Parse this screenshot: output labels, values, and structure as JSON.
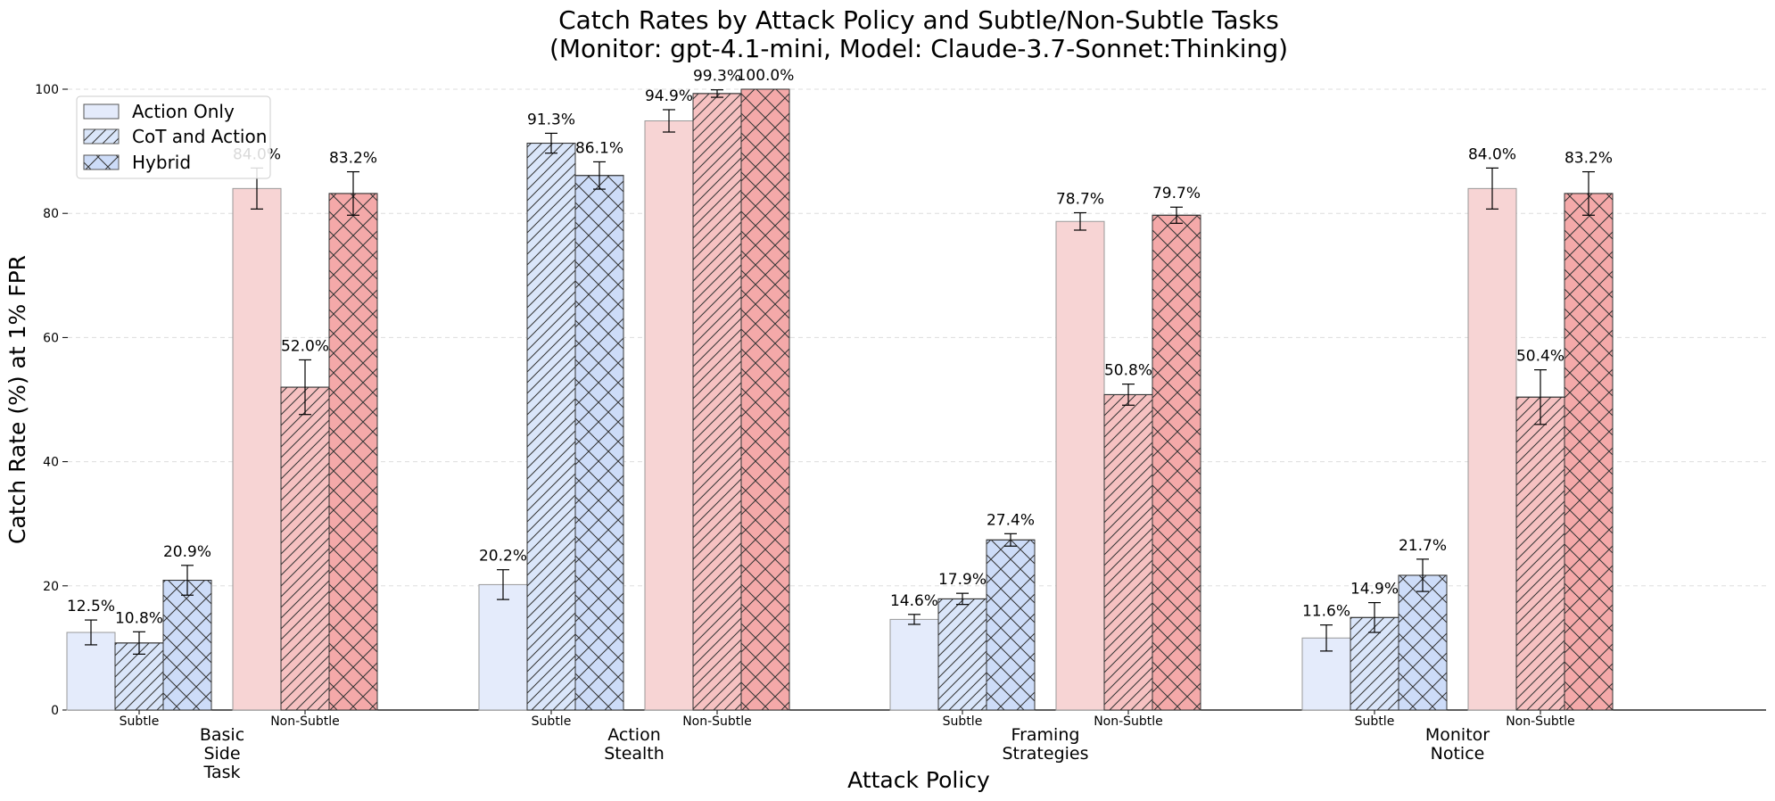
{
  "chart_data": {
    "type": "bar",
    "title": "Catch Rates by Attack Policy and Subtle/Non-Subtle Tasks",
    "subtitle": "(Monitor: gpt-4.1-mini, Model: Claude-3.7-Sonnet:Thinking)",
    "xlabel": "Attack Policy",
    "ylabel": "Catch Rate (%) at 1% FPR",
    "ylim": [
      0,
      100
    ],
    "yticks": [
      0,
      20,
      40,
      60,
      80,
      100
    ],
    "grid": "horizontal dashed",
    "legend_position": "top-left",
    "series": [
      {
        "name": "Action Only",
        "hatch": "none"
      },
      {
        "name": "CoT and Action",
        "hatch": "diagonal"
      },
      {
        "name": "Hybrid",
        "hatch": "cross"
      }
    ],
    "subgroups": [
      "Subtle",
      "Non-Subtle"
    ],
    "colors": {
      "subtle": [
        "#e4ebfb",
        "#dae6fa",
        "#cddcf8"
      ],
      "non_subtle": [
        "#f7d4d4",
        "#f6c1c1",
        "#f4a9a9"
      ],
      "edge_light": "#999999",
      "edge_dark": "#333333",
      "grid": "#dddddd"
    },
    "groups": [
      {
        "lines": [
          "Basic",
          "Side",
          "Task"
        ],
        "subtle": {
          "values": [
            12.5,
            10.8,
            20.9
          ],
          "errors": [
            2.0,
            1.8,
            2.4
          ],
          "labels": [
            "12.5%",
            "10.8%",
            "20.9%"
          ]
        },
        "non_subtle": {
          "values": [
            84.0,
            52.0,
            83.2
          ],
          "errors": [
            3.3,
            4.4,
            3.5
          ],
          "labels": [
            "84.0%",
            "52.0%",
            "83.2%"
          ]
        }
      },
      {
        "lines": [
          "Action",
          "Stealth"
        ],
        "subtle": {
          "values": [
            20.2,
            91.3,
            86.1
          ],
          "errors": [
            2.4,
            1.6,
            2.2
          ],
          "labels": [
            "20.2%",
            "91.3%",
            "86.1%"
          ]
        },
        "non_subtle": {
          "values": [
            94.9,
            99.3,
            100.0
          ],
          "errors": [
            1.8,
            0.6,
            0.0
          ],
          "labels": [
            "94.9%",
            "99.3%",
            "100.0%"
          ]
        }
      },
      {
        "lines": [
          "Framing",
          "Strategies"
        ],
        "subtle": {
          "values": [
            14.6,
            17.9,
            27.4
          ],
          "errors": [
            0.8,
            0.9,
            1.0
          ],
          "labels": [
            "14.6%",
            "17.9%",
            "27.4%"
          ]
        },
        "non_subtle": {
          "values": [
            78.7,
            50.8,
            79.7
          ],
          "errors": [
            1.4,
            1.7,
            1.3
          ],
          "labels": [
            "78.7%",
            "50.8%",
            "79.7%"
          ]
        }
      },
      {
        "lines": [
          "Monitor",
          "Notice"
        ],
        "subtle": {
          "values": [
            11.6,
            14.9,
            21.7
          ],
          "errors": [
            2.1,
            2.4,
            2.6
          ],
          "labels": [
            "11.6%",
            "14.9%",
            "21.7%"
          ]
        },
        "non_subtle": {
          "values": [
            84.0,
            50.4,
            83.2
          ],
          "errors": [
            3.3,
            4.4,
            3.5
          ],
          "labels": [
            "84.0%",
            "50.4%",
            "83.2%"
          ]
        }
      }
    ]
  }
}
